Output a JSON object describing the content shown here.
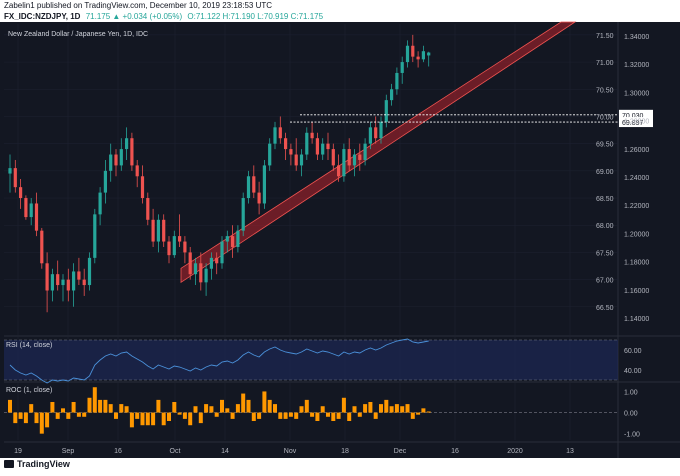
{
  "header": {
    "line1": "Zabelin1 published on TradingView.com, December 10, 2019 23:18:53 UTC",
    "line2_symbol": "FX_IDC:NZDJPY, 1D",
    "line2_change": "71.175 ▲ +0.034 (+0.05%)",
    "line2_ohlc": "O:71.122 H:71.190 L:70.919 C:71.175"
  },
  "colors": {
    "background": "#131722",
    "grid": "#1e2232",
    "up": "#26a69a",
    "down": "#ef5350",
    "rsi": "#4a90d9",
    "roc": "#ff9800",
    "channel": "#b7222b",
    "axis_text": "#b2b5be"
  },
  "chart_data": [
    {
      "type": "candlestick",
      "title": "New Zealand Dollar / Japanese Yen, 1D, IDC",
      "ylim": [
        66.0,
        71.7
      ],
      "left_axis_ticks": [
        66.5,
        67.0,
        67.5,
        68.0,
        68.5,
        69.0,
        69.5,
        70.0,
        70.5,
        71.0,
        71.5
      ],
      "right_axis_ticks": [
        1.14,
        1.16,
        1.18,
        1.2,
        1.22,
        1.24,
        1.26,
        1.28,
        1.3,
        1.32,
        1.34
      ],
      "right_axis_tick_labels": [
        "1.14000",
        "1.16000",
        "1.18000",
        "1.20000",
        "1.22000",
        "1.24000",
        "1.26000",
        "1.28000",
        "1.30000",
        "1.32000",
        "1.34000"
      ],
      "x_tick_labels": [
        "19",
        "Sep",
        "16",
        "Oct",
        "14",
        "Nov",
        "18",
        "Dec",
        "16",
        "2020",
        "13"
      ],
      "highlighted_levels": [
        {
          "value": 70.03,
          "label": "70.030"
        },
        {
          "value": 69.897,
          "label": "69.897"
        }
      ],
      "ohlc": [
        [
          68.95,
          69.3,
          68.6,
          69.05
        ],
        [
          69.05,
          69.2,
          68.6,
          68.7
        ],
        [
          68.7,
          68.85,
          68.3,
          68.5
        ],
        [
          68.5,
          68.55,
          68.1,
          68.15
        ],
        [
          68.15,
          68.5,
          68.0,
          68.4
        ],
        [
          68.4,
          68.6,
          67.8,
          67.9
        ],
        [
          67.9,
          67.95,
          67.2,
          67.3
        ],
        [
          67.3,
          67.5,
          66.4,
          66.8
        ],
        [
          66.8,
          67.2,
          66.6,
          67.1
        ],
        [
          67.1,
          67.35,
          66.8,
          66.9
        ],
        [
          66.9,
          67.1,
          66.6,
          67.0
        ],
        [
          67.0,
          67.2,
          66.6,
          66.8
        ],
        [
          66.8,
          67.3,
          66.5,
          67.15
        ],
        [
          67.15,
          67.4,
          66.9,
          67.0
        ],
        [
          67.0,
          67.2,
          66.7,
          66.9
        ],
        [
          66.9,
          67.5,
          66.8,
          67.4
        ],
        [
          67.4,
          68.3,
          67.3,
          68.2
        ],
        [
          68.2,
          68.7,
          68.0,
          68.6
        ],
        [
          68.6,
          69.2,
          68.4,
          69.0
        ],
        [
          69.0,
          69.5,
          68.8,
          69.3
        ],
        [
          69.3,
          69.4,
          68.9,
          69.1
        ],
        [
          69.1,
          69.6,
          69.0,
          69.4
        ],
        [
          69.4,
          69.8,
          69.2,
          69.6
        ],
        [
          69.6,
          69.7,
          69.0,
          69.1
        ],
        [
          69.1,
          69.2,
          68.7,
          68.9
        ],
        [
          68.9,
          69.1,
          68.4,
          68.5
        ],
        [
          68.5,
          68.6,
          68.0,
          68.1
        ],
        [
          68.1,
          68.3,
          67.6,
          67.7
        ],
        [
          67.7,
          68.2,
          67.5,
          68.1
        ],
        [
          68.1,
          68.2,
          67.6,
          67.7
        ],
        [
          67.7,
          67.8,
          67.3,
          67.45
        ],
        [
          67.45,
          67.9,
          67.4,
          67.8
        ],
        [
          67.8,
          68.2,
          67.6,
          67.7
        ],
        [
          67.7,
          67.8,
          67.3,
          67.5
        ],
        [
          67.5,
          67.6,
          67.0,
          67.1
        ],
        [
          67.1,
          67.4,
          66.9,
          67.3
        ],
        [
          67.3,
          67.5,
          66.8,
          66.95
        ],
        [
          66.95,
          67.3,
          66.7,
          67.2
        ],
        [
          67.2,
          67.5,
          67.0,
          67.4
        ],
        [
          67.4,
          67.5,
          67.1,
          67.3
        ],
        [
          67.3,
          67.8,
          67.2,
          67.7
        ],
        [
          67.7,
          67.9,
          67.5,
          67.8
        ],
        [
          67.8,
          68.0,
          67.4,
          67.6
        ],
        [
          67.6,
          68.0,
          67.5,
          67.9
        ],
        [
          67.9,
          68.6,
          67.8,
          68.5
        ],
        [
          68.5,
          69.0,
          68.4,
          68.9
        ],
        [
          68.9,
          69.1,
          68.5,
          68.6
        ],
        [
          68.6,
          68.8,
          68.2,
          68.4
        ],
        [
          68.4,
          69.2,
          68.3,
          69.1
        ],
        [
          69.1,
          69.6,
          69.0,
          69.5
        ],
        [
          69.5,
          69.9,
          69.4,
          69.8
        ],
        [
          69.8,
          70.0,
          69.5,
          69.6
        ],
        [
          69.6,
          69.7,
          69.2,
          69.4
        ],
        [
          69.4,
          69.5,
          69.1,
          69.3
        ],
        [
          69.3,
          69.6,
          69.0,
          69.1
        ],
        [
          69.1,
          69.4,
          68.9,
          69.3
        ],
        [
          69.3,
          69.8,
          69.2,
          69.7
        ],
        [
          69.7,
          69.9,
          69.5,
          69.6
        ],
        [
          69.6,
          69.7,
          69.2,
          69.3
        ],
        [
          69.3,
          69.6,
          69.2,
          69.5
        ],
        [
          69.5,
          69.7,
          69.2,
          69.4
        ],
        [
          69.4,
          69.5,
          69.0,
          69.1
        ],
        [
          69.1,
          69.3,
          68.8,
          68.9
        ],
        [
          68.9,
          69.5,
          68.8,
          69.4
        ],
        [
          69.4,
          69.6,
          69.0,
          69.1
        ],
        [
          69.1,
          69.4,
          68.9,
          69.3
        ],
        [
          69.3,
          69.5,
          69.0,
          69.2
        ],
        [
          69.2,
          69.6,
          69.1,
          69.5
        ],
        [
          69.5,
          69.9,
          69.4,
          69.8
        ],
        [
          69.8,
          70.0,
          69.5,
          69.6
        ],
        [
          69.6,
          70.0,
          69.5,
          69.9
        ],
        [
          69.9,
          70.4,
          69.8,
          70.3
        ],
        [
          70.3,
          70.6,
          70.2,
          70.5
        ],
        [
          70.5,
          70.9,
          70.4,
          70.8
        ],
        [
          70.8,
          71.1,
          70.6,
          71.0
        ],
        [
          71.0,
          71.4,
          70.9,
          71.3
        ],
        [
          71.3,
          71.5,
          71.0,
          71.1
        ],
        [
          71.1,
          71.2,
          70.9,
          71.05
        ],
        [
          71.05,
          71.3,
          71.0,
          71.2
        ],
        [
          71.122,
          71.19,
          70.919,
          71.175
        ]
      ]
    },
    {
      "type": "line",
      "title": "RSI (14, close)",
      "ylim": [
        30,
        72
      ],
      "y_ticks": [
        40,
        60
      ],
      "y_tick_labels": [
        "40.00",
        "60.00"
      ],
      "bands": [
        70,
        30
      ],
      "values": [
        45,
        40,
        37,
        35,
        37,
        34,
        30,
        27,
        30,
        29,
        30,
        29,
        32,
        31,
        30,
        34,
        45,
        50,
        54,
        56,
        54,
        57,
        58,
        54,
        51,
        48,
        44,
        41,
        45,
        43,
        41,
        44,
        43,
        41,
        39,
        42,
        40,
        43,
        45,
        44,
        48,
        49,
        47,
        50,
        55,
        58,
        55,
        53,
        58,
        61,
        63,
        60,
        58,
        57,
        56,
        58,
        61,
        59,
        57,
        59,
        58,
        56,
        54,
        58,
        56,
        58,
        57,
        60,
        62,
        60,
        62,
        65,
        67,
        69,
        70,
        71,
        68,
        67,
        68,
        69
      ]
    },
    {
      "type": "bar",
      "title": "ROC (1, close)",
      "ylim": [
        -1.3,
        1.4
      ],
      "y_ticks": [
        -1.0,
        0.0,
        1.0
      ],
      "y_tick_labels": [
        "-1.00",
        "0.00",
        "1.00"
      ],
      "values": [
        0.6,
        -0.5,
        -0.3,
        -0.5,
        0.4,
        -0.5,
        -1.0,
        -0.7,
        0.5,
        -0.3,
        0.2,
        -0.3,
        0.5,
        -0.2,
        -0.2,
        0.7,
        1.2,
        0.6,
        0.6,
        0.4,
        -0.3,
        0.4,
        0.3,
        -0.7,
        -0.3,
        -0.6,
        -0.6,
        -0.6,
        0.6,
        -0.6,
        -0.4,
        0.5,
        -0.1,
        -0.3,
        -0.6,
        0.3,
        -0.5,
        0.4,
        0.3,
        -0.2,
        0.6,
        0.2,
        -0.3,
        0.4,
        0.9,
        0.6,
        -0.4,
        -0.3,
        1.0,
        0.6,
        0.4,
        -0.3,
        -0.3,
        -0.2,
        -0.3,
        0.3,
        0.6,
        -0.2,
        -0.4,
        0.3,
        -0.2,
        -0.4,
        -0.3,
        0.7,
        -0.4,
        0.3,
        -0.2,
        0.4,
        0.5,
        -0.3,
        0.4,
        0.6,
        0.3,
        0.4,
        0.3,
        0.4,
        -0.3,
        -0.1,
        0.2,
        0.05
      ]
    }
  ]
}
